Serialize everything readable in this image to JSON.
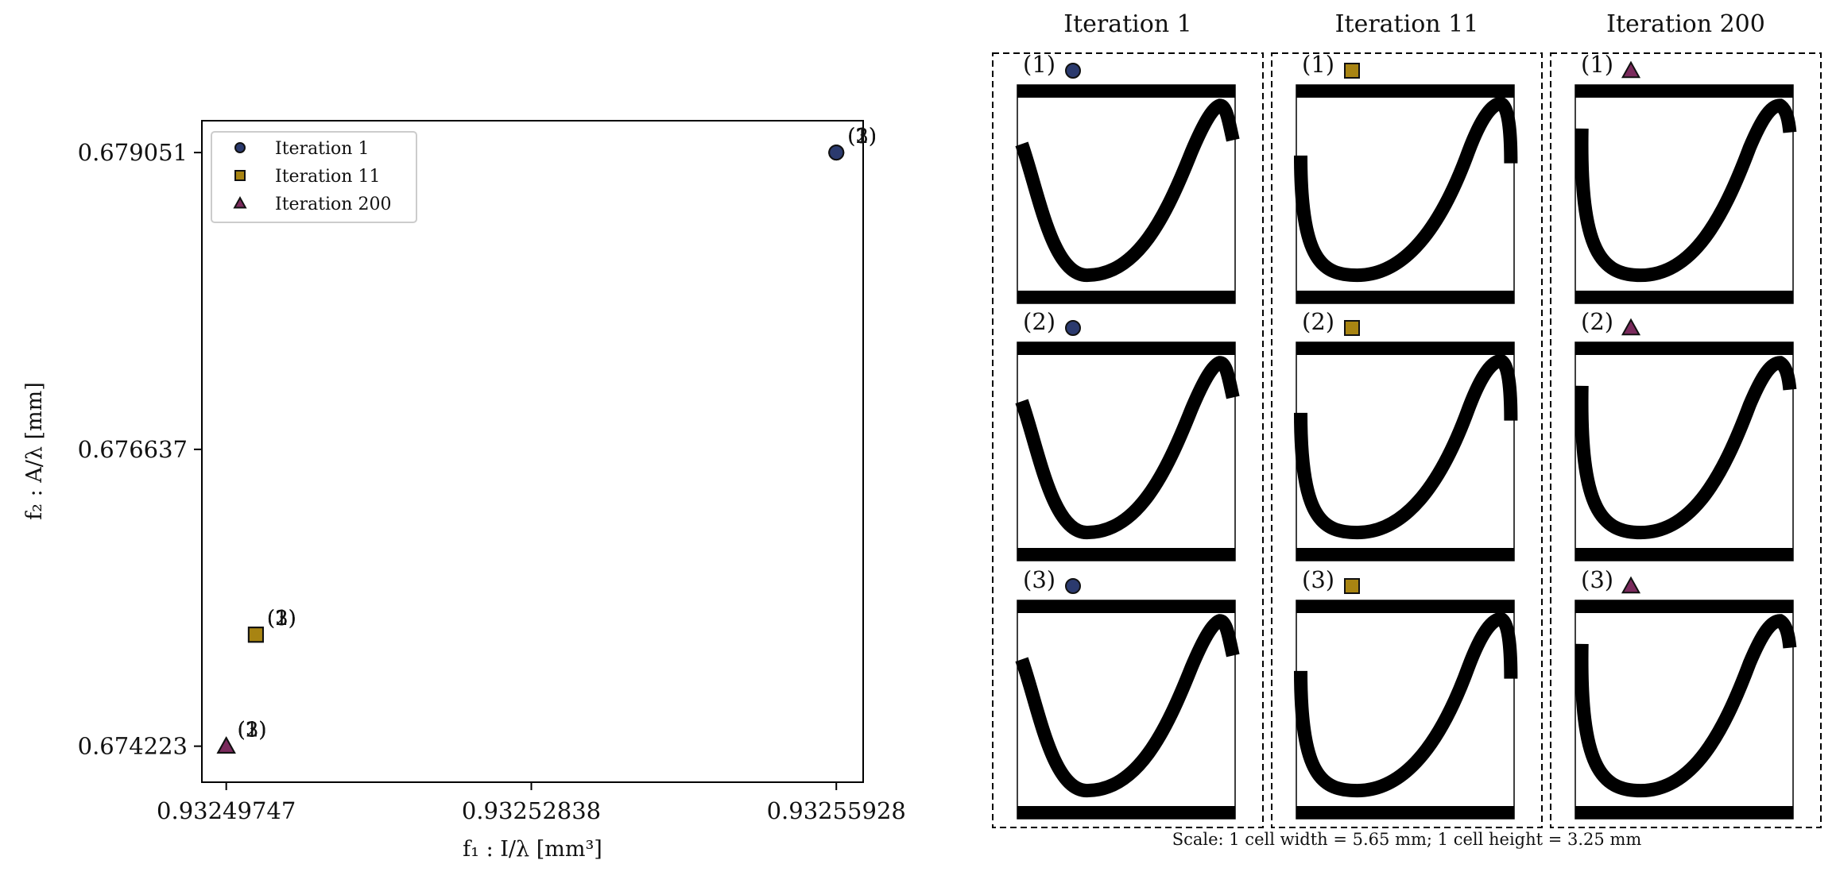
{
  "chart_data": [
    {
      "type": "scatter",
      "xlabel": "f₁ : I/λ [mm³]",
      "ylabel": "f₂ : A/λ [mm]",
      "xlim": [
        0.932495,
        0.932562
      ],
      "ylim": [
        0.67393,
        0.67931
      ],
      "xticks": [
        0.93249747,
        0.93252838,
        0.93255928
      ],
      "xtick_labels": [
        "0.93249747",
        "0.93252838",
        "0.93255928"
      ],
      "yticks": [
        0.674223,
        0.676637,
        0.679051
      ],
      "ytick_labels": [
        "0.674223",
        "0.676637",
        "0.679051"
      ],
      "grid": false,
      "legend_position": "top-left",
      "series": [
        {
          "name": "Iteration 1",
          "marker": "circle",
          "color": "#2b3a6e",
          "points": [
            {
              "x": 0.93255928,
              "y": 0.679051,
              "label": "(1)"
            },
            {
              "x": 0.93255928,
              "y": 0.679051,
              "label": "(2)"
            },
            {
              "x": 0.93255928,
              "y": 0.679051,
              "label": "(3)"
            }
          ]
        },
        {
          "name": "Iteration 11",
          "marker": "square",
          "color": "#a88412",
          "points": [
            {
              "x": 0.93250047,
              "y": 0.67513,
              "label": "(1)"
            },
            {
              "x": 0.93250047,
              "y": 0.67513,
              "label": "(2)"
            },
            {
              "x": 0.93250047,
              "y": 0.67513,
              "label": "(3)"
            }
          ]
        },
        {
          "name": "Iteration 200",
          "marker": "triangle",
          "color": "#7a2a5c",
          "points": [
            {
              "x": 0.93249747,
              "y": 0.674223,
              "label": "(1)"
            },
            {
              "x": 0.93249747,
              "y": 0.674223,
              "label": "(2)"
            },
            {
              "x": 0.93249747,
              "y": 0.674223,
              "label": "(3)"
            }
          ]
        }
      ]
    },
    {
      "type": "other",
      "description_free": true,
      "columns": [
        {
          "title": "Iteration 1",
          "marker": "circle",
          "color": "#2b3a6e",
          "cells": [
            {
              "label": "(1)",
              "shape": "a"
            },
            {
              "label": "(2)",
              "shape": "a"
            },
            {
              "label": "(3)",
              "shape": "a"
            }
          ]
        },
        {
          "title": "Iteration 11",
          "marker": "square",
          "color": "#a88412",
          "cells": [
            {
              "label": "(1)",
              "shape": "b"
            },
            {
              "label": "(2)",
              "shape": "b"
            },
            {
              "label": "(3)",
              "shape": "b"
            }
          ]
        },
        {
          "title": "Iteration 200",
          "marker": "triangle",
          "color": "#7a2a5c",
          "cells": [
            {
              "label": "(1)",
              "shape": "c"
            },
            {
              "label": "(2)",
              "shape": "c"
            },
            {
              "label": "(3)",
              "shape": "c"
            }
          ]
        }
      ],
      "scale_note": "Scale: 1 cell width = 5.65 mm; 1 cell height = 3.25 mm"
    }
  ]
}
